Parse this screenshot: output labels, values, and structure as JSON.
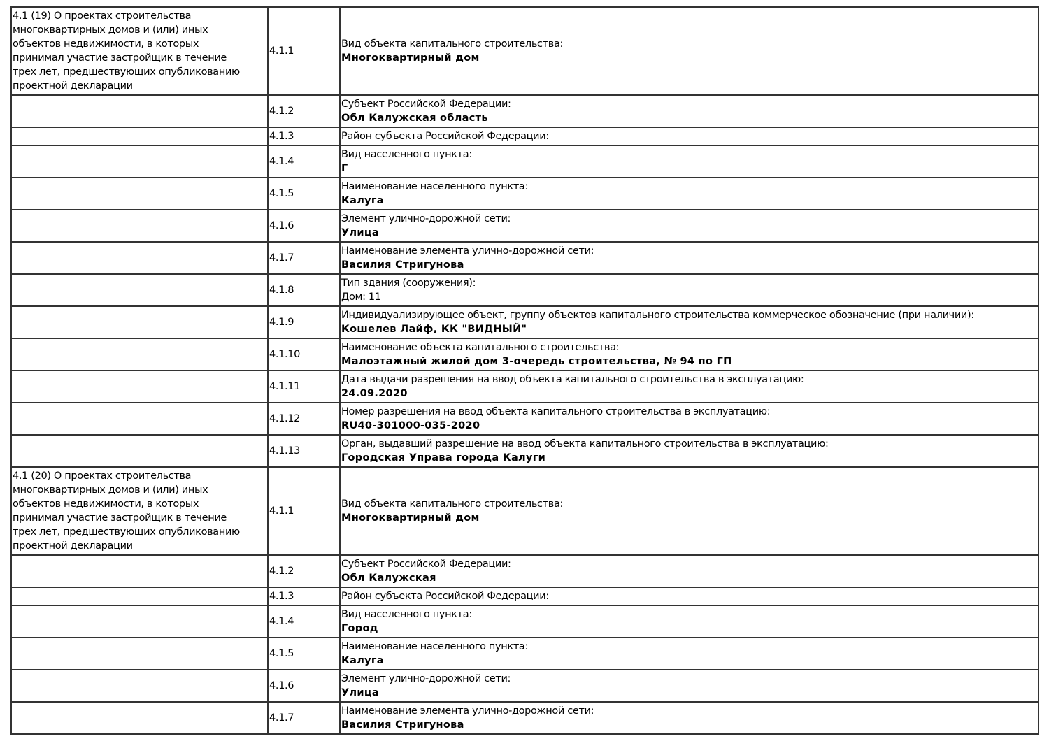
{
  "rows": [
    {
      "section": "4.1 (19) О проектах строительства\nмногоквартирных домов и (или) иных\nобъектов недвижимости, в которых\nпринимал участие застройщик в течение\nтрех лет, предшествующих опубликованию\nпроектной декларации",
      "num": "4.1.1",
      "label": "Вид объекта капитального строительства:",
      "value": "Многоквартирный дом"
    },
    {
      "section": "",
      "num": "4.1.2",
      "label": "Субъект Российской Федерации:",
      "value": "Обл Калужская область"
    },
    {
      "section": "",
      "num": "4.1.3",
      "label": "Район субъекта Российской Федерации:",
      "value": ""
    },
    {
      "section": "",
      "num": "4.1.4",
      "label": "Вид населенного пункта:",
      "value": "Г"
    },
    {
      "section": "",
      "num": "4.1.5",
      "label": "Наименование населенного пункта:",
      "value": "Калуга"
    },
    {
      "section": "",
      "num": "4.1.6",
      "label": "Элемент улично-дорожной сети:",
      "value": "Улица"
    },
    {
      "section": "",
      "num": "4.1.7",
      "label": "Наименование элемента улично-дорожной сети:",
      "value": "Василия Стригунова"
    },
    {
      "section": "",
      "num": "4.1.8",
      "label": "Тип здания (сооружения):",
      "value": "Дом: 11",
      "plain": true
    },
    {
      "section": "",
      "num": "4.1.9",
      "label": "Индивидуализирующее объект, группу объектов капитального строительства коммерческое обозначение (при наличии):",
      "value": "Кошелев Лайф, КК \"ВИДНЫЙ\""
    },
    {
      "section": "",
      "num": "4.1.10",
      "label": "Наименование объекта капитального строительства:",
      "value": "Малоэтажный жилой дом 3-очередь строительства, № 94 по ГП"
    },
    {
      "section": "",
      "num": "4.1.11",
      "label": "Дата выдачи разрешения на ввод объекта капитального строительства в эксплуатацию:",
      "value": "24.09.2020"
    },
    {
      "section": "",
      "num": "4.1.12",
      "label": "Номер разрешения на ввод объекта капитального строительства в эксплуатацию:",
      "value": "RU40-301000-035-2020"
    },
    {
      "section": "",
      "num": "4.1.13",
      "label": "Орган, выдавший разрешение на ввод объекта капитального строительства в эксплуатацию:",
      "value": "Городская Управа города Калуги"
    },
    {
      "section": "4.1 (20) О проектах строительства\nмногоквартирных домов и (или) иных\nобъектов недвижимости, в которых\nпринимал участие застройщик в течение\nтрех лет, предшествующих опубликованию\nпроектной декларации",
      "num": "4.1.1",
      "label": "Вид объекта капитального строительства:",
      "value": "Многоквартирный дом"
    },
    {
      "section": "",
      "num": "4.1.2",
      "label": "Субъект Российской Федерации:",
      "value": "Обл Калужская"
    },
    {
      "section": "",
      "num": "4.1.3",
      "label": "Район субъекта Российской Федерации:",
      "value": ""
    },
    {
      "section": "",
      "num": "4.1.4",
      "label": "Вид населенного пункта:",
      "value": "Город"
    },
    {
      "section": "",
      "num": "4.1.5",
      "label": "Наименование населенного пункта:",
      "value": "Калуга"
    },
    {
      "section": "",
      "num": "4.1.6",
      "label": "Элемент улично-дорожной сети:",
      "value": "Улица"
    },
    {
      "section": "",
      "num": "4.1.7",
      "label": "Наименование элемента улично-дорожной сети:",
      "value": "Василия Стригунова"
    }
  ]
}
